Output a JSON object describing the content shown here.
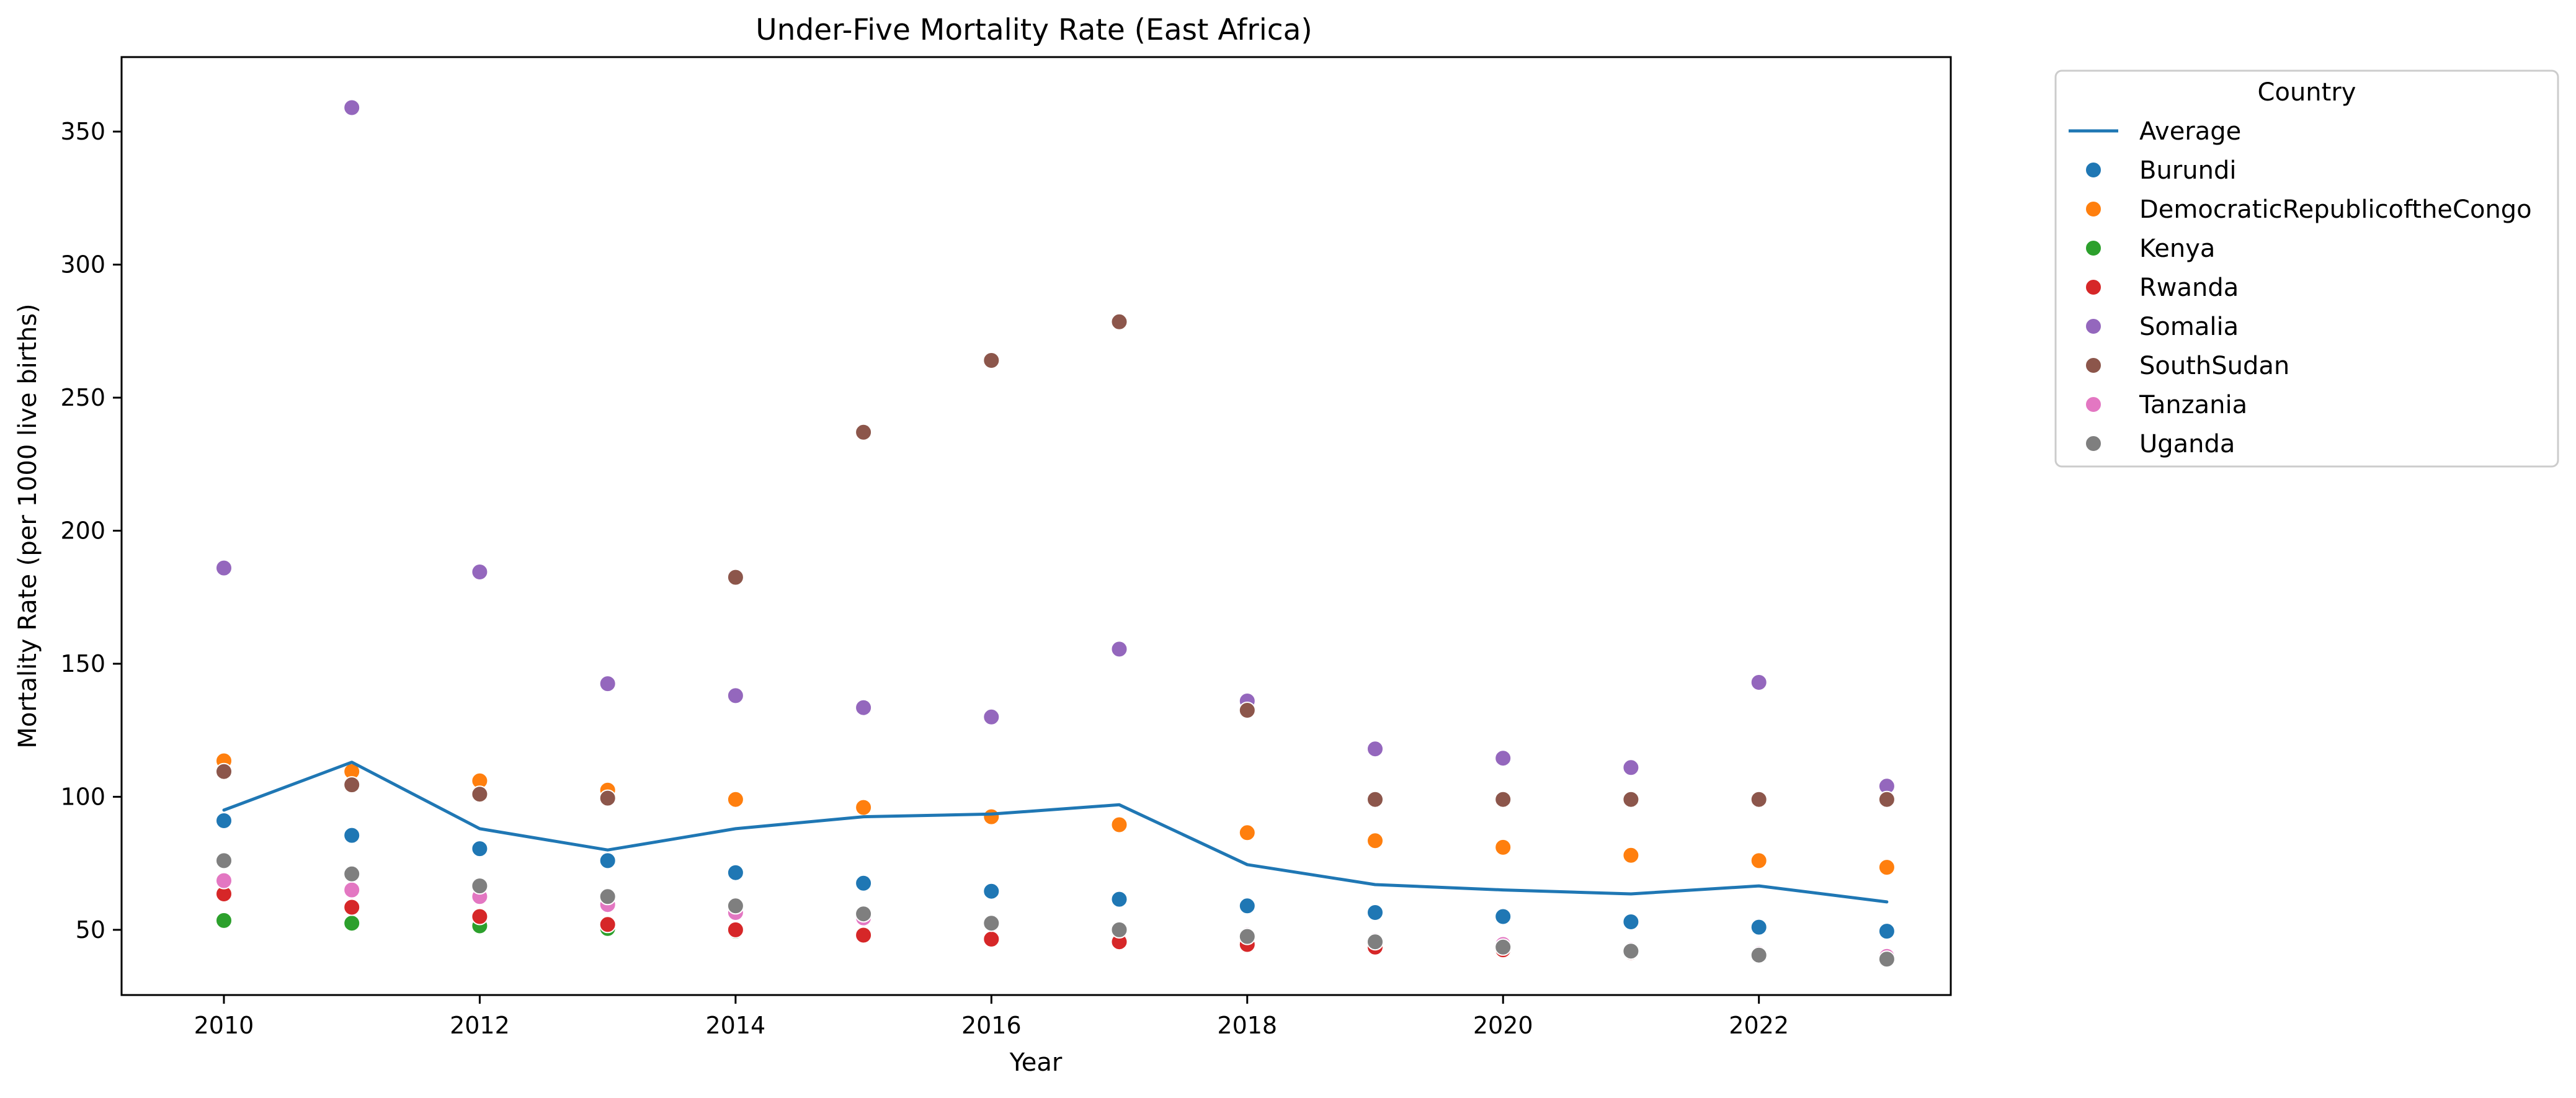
{
  "chart_data": {
    "type": "scatter",
    "title": "Under-Five Mortality Rate (East Africa)",
    "xlabel": "Year",
    "ylabel": "Mortality Rate (per 1000 live births)",
    "xlim": [
      2009.2,
      2023.5
    ],
    "ylim": [
      25.5,
      378
    ],
    "x_ticks": [
      2010,
      2012,
      2014,
      2016,
      2018,
      2020,
      2022
    ],
    "y_ticks": [
      50,
      100,
      150,
      200,
      250,
      300,
      350
    ],
    "legend": {
      "title": "Country",
      "placement": "upper left outside right"
    },
    "grid": false,
    "years": [
      2010,
      2011,
      2012,
      2013,
      2014,
      2015,
      2016,
      2017,
      2018,
      2019,
      2020,
      2021,
      2022,
      2023
    ],
    "average": {
      "name": "Average",
      "color": "#1f77b4",
      "values": [
        95,
        113,
        88,
        80,
        88,
        92.5,
        93.5,
        97,
        74.5,
        67,
        65,
        63.5,
        66.5,
        60.5
      ]
    },
    "series": [
      {
        "name": "Burundi",
        "color": "#1f77b4",
        "values": [
          91,
          85.5,
          80.5,
          76,
          71.5,
          67.5,
          64.5,
          61.5,
          59,
          56.5,
          55,
          53,
          51,
          49.5
        ]
      },
      {
        "name": "DemocraticRepublicoftheCongo",
        "color": "#ff7f0e",
        "values": [
          113.5,
          109.5,
          106,
          102.5,
          99,
          96,
          92.5,
          89.5,
          86.5,
          83.5,
          81,
          78,
          76,
          73.5
        ]
      },
      {
        "name": "Kenya",
        "color": "#2ca02c",
        "values": [
          53.5,
          52.5,
          51.5,
          50.5,
          49.5,
          null,
          null,
          null,
          null,
          null,
          null,
          null,
          null,
          null
        ]
      },
      {
        "name": "Rwanda",
        "color": "#d62728",
        "values": [
          63.5,
          58.5,
          55,
          52,
          50,
          48,
          46.5,
          45.5,
          44.5,
          43.5,
          42.5,
          41.5,
          40.5,
          39.5
        ]
      },
      {
        "name": "Somalia",
        "color": "#9467bd",
        "values": [
          186,
          359,
          184.5,
          142.5,
          138,
          133.5,
          130,
          155.5,
          136,
          118,
          114.5,
          111,
          143,
          104
        ]
      },
      {
        "name": "SouthSudan",
        "color": "#8c564b",
        "values": [
          109.5,
          104.5,
          101,
          99.5,
          182.5,
          237,
          264,
          278.5,
          132.5,
          99,
          99,
          99,
          99,
          99
        ]
      },
      {
        "name": "Tanzania",
        "color": "#e377c2",
        "values": [
          68.5,
          65,
          62.5,
          59.5,
          56.5,
          54.5,
          52.5,
          50,
          48,
          46,
          44.5,
          42.5,
          41,
          40
        ]
      },
      {
        "name": "Uganda",
        "color": "#7f7f7f",
        "values": [
          76,
          71,
          66.5,
          62.5,
          59,
          56,
          52.5,
          50,
          47.5,
          45.5,
          43.5,
          42,
          40.5,
          39
        ]
      }
    ]
  }
}
